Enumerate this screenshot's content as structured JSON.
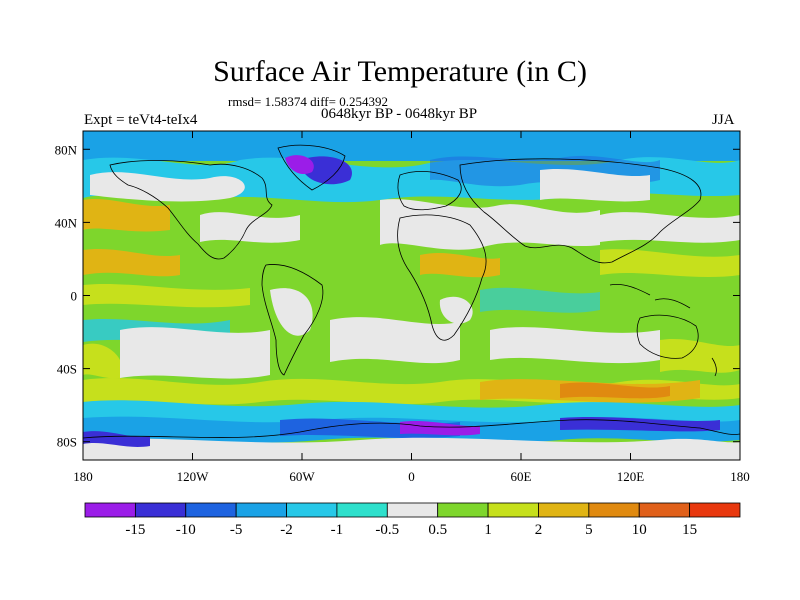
{
  "title": "Surface Air Temperature (in C)",
  "stats_line": "rmsd= 1.58374 diff= 0.254392",
  "period_line": "0648kyr BP - 0648kyr BP",
  "experiment_label": "Expt = teVt4-teIx4",
  "season_label": "JJA",
  "map": {
    "projection": "cylindrical-equidistant",
    "lon_range": [
      -180,
      180
    ],
    "lat_range": [
      -90,
      90
    ],
    "x_ticks": [
      {
        "value": -180,
        "label": "180"
      },
      {
        "value": -120,
        "label": "120W"
      },
      {
        "value": -60,
        "label": "60W"
      },
      {
        "value": 0,
        "label": "0"
      },
      {
        "value": 60,
        "label": "60E"
      },
      {
        "value": 120,
        "label": "120E"
      },
      {
        "value": 180,
        "label": "180"
      }
    ],
    "y_ticks": [
      {
        "value": 80,
        "label": "80N"
      },
      {
        "value": 40,
        "label": "40N"
      },
      {
        "value": 0,
        "label": "0"
      },
      {
        "value": -40,
        "label": "40S"
      },
      {
        "value": -80,
        "label": "80S"
      }
    ]
  },
  "colorbar": {
    "colors": [
      "#9b1de8",
      "#3a2fd6",
      "#1e63e0",
      "#1aa2e6",
      "#27c8e8",
      "#2ee0cc",
      "#e8e8e8",
      "#7ed62c",
      "#c6e01c",
      "#e0b414",
      "#e08a10",
      "#e0601a",
      "#e8380e"
    ],
    "labels": [
      "-15",
      "-10",
      "-5",
      "-2",
      "-1",
      "-0.5",
      "0.5",
      "1",
      "2",
      "5",
      "10",
      "15"
    ]
  }
}
